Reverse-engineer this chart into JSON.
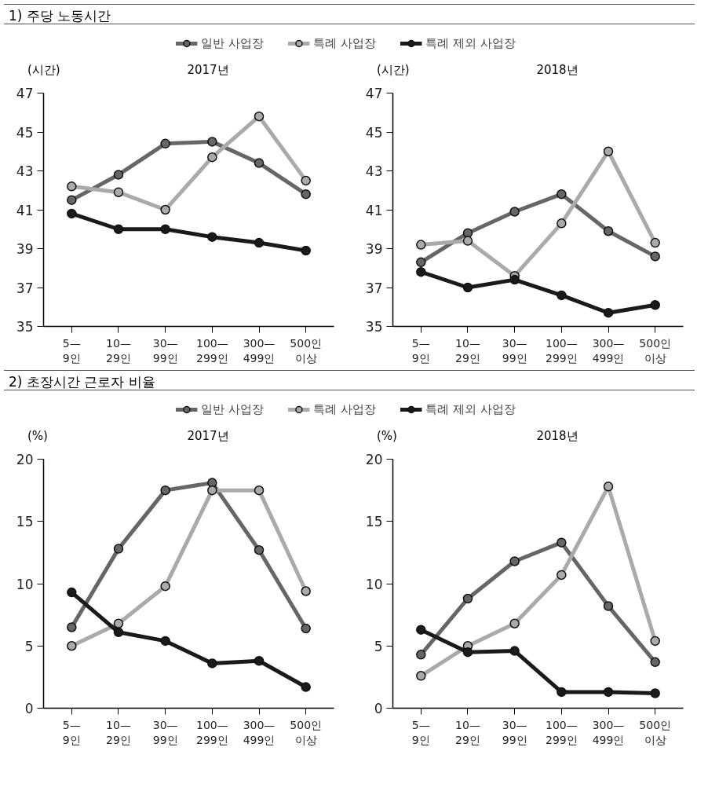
{
  "chart_data": [
    {
      "type": "line",
      "annotations": [
        "1) 주당 노동시간"
      ],
      "title": "2017년",
      "ylabel": "(시간)",
      "categories": [
        "5—\n9인",
        "10—\n29인",
        "30—\n99인",
        "100—\n299인",
        "300—\n499인",
        "500인\n이상"
      ],
      "ylim": [
        35,
        47
      ],
      "yticks": [
        35,
        37,
        39,
        41,
        43,
        45,
        47
      ],
      "grid": false,
      "legend": "top",
      "marker": "circle",
      "series": [
        {
          "name": "일반 사업장",
          "color": "#666666",
          "values": [
            41.5,
            42.8,
            44.4,
            44.5,
            43.4,
            41.8
          ]
        },
        {
          "name": "특례 사업장",
          "color": "#aaaaaa",
          "values": [
            42.2,
            41.9,
            41.0,
            43.7,
            45.8,
            42.5
          ]
        },
        {
          "name": "특례 제외 사업장",
          "color": "#1a1a1a",
          "values": [
            40.8,
            40.0,
            40.0,
            39.6,
            39.3,
            38.9
          ]
        }
      ]
    },
    {
      "type": "line",
      "title": "2018년",
      "ylabel": "(시간)",
      "categories": [
        "5—\n9인",
        "10—\n29인",
        "30—\n99인",
        "100—\n299인",
        "300—\n499인",
        "500인\n이상"
      ],
      "ylim": [
        35,
        47
      ],
      "yticks": [
        35,
        37,
        39,
        41,
        43,
        45,
        47
      ],
      "grid": false,
      "marker": "circle",
      "series": [
        {
          "color": "#666666",
          "values": [
            38.3,
            39.8,
            40.9,
            41.8,
            39.9,
            38.6
          ]
        },
        {
          "color": "#aaaaaa",
          "values": [
            39.2,
            39.4,
            37.6,
            40.3,
            44.0,
            39.3
          ]
        },
        {
          "color": "#1a1a1a",
          "values": [
            37.8,
            37.0,
            37.4,
            36.6,
            35.7,
            36.1
          ]
        }
      ]
    },
    {
      "type": "line",
      "annotations": [
        "2) 초장시간 근로자 비율"
      ],
      "title": "2017년",
      "ylabel": "(%)",
      "categories": [
        "5—\n9인",
        "10—\n29인",
        "30—\n99인",
        "100—\n299인",
        "300—\n499인",
        "500인\n이상"
      ],
      "ylim": [
        0,
        20
      ],
      "yticks": [
        0,
        5,
        10,
        15,
        20
      ],
      "grid": false,
      "legend": "top",
      "marker": "circle",
      "series": [
        {
          "name": "일반 사업장",
          "color": "#666666",
          "values": [
            6.5,
            12.8,
            17.5,
            18.1,
            12.7,
            6.4
          ]
        },
        {
          "name": "특례 사업장",
          "color": "#aaaaaa",
          "values": [
            5.0,
            6.8,
            9.8,
            17.5,
            17.5,
            9.4
          ]
        },
        {
          "name": "특례 제외 사업장",
          "color": "#1a1a1a",
          "values": [
            9.3,
            6.1,
            5.4,
            3.6,
            3.8,
            1.7
          ]
        }
      ]
    },
    {
      "type": "line",
      "title": "2018년",
      "ylabel": "(%)",
      "categories": [
        "5—\n9인",
        "10—\n29인",
        "30—\n99인",
        "100—\n299인",
        "300—\n499인",
        "500인\n이상"
      ],
      "ylim": [
        0,
        20
      ],
      "yticks": [
        0,
        5,
        10,
        15,
        20
      ],
      "grid": false,
      "marker": "circle",
      "series": [
        {
          "color": "#666666",
          "values": [
            4.3,
            8.8,
            11.8,
            13.3,
            8.2,
            3.7
          ]
        },
        {
          "color": "#aaaaaa",
          "values": [
            2.6,
            5.0,
            6.8,
            10.7,
            17.8,
            5.4
          ]
        },
        {
          "color": "#1a1a1a",
          "values": [
            6.3,
            4.5,
            4.6,
            1.3,
            1.3,
            1.2
          ]
        }
      ]
    }
  ]
}
